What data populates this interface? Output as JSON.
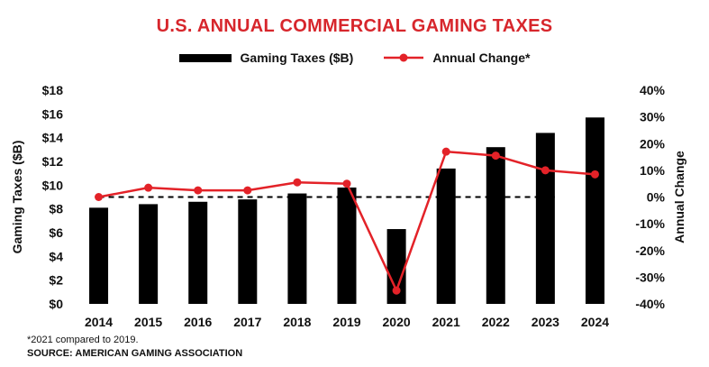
{
  "colors": {
    "accent": "#d7262c",
    "bar": "#000000",
    "line": "#e32228"
  },
  "chart_data": {
    "type": "bar+line",
    "title": "U.S. ANNUAL COMMERCIAL GAMING TAXES",
    "categories": [
      "2014",
      "2015",
      "2016",
      "2017",
      "2018",
      "2019",
      "2020",
      "2021",
      "2022",
      "2023",
      "2024"
    ],
    "series": [
      {
        "name": "Gaming Taxes ($B)",
        "type": "bar",
        "axis": "left",
        "values": [
          8.1,
          8.4,
          8.6,
          8.8,
          9.3,
          9.8,
          6.3,
          11.4,
          13.2,
          14.4,
          15.7
        ]
      },
      {
        "name": "Annual Change*",
        "type": "line",
        "axis": "right",
        "values": [
          0,
          3.5,
          2.5,
          2.5,
          5.5,
          5,
          -35,
          17,
          15.5,
          10,
          8.5
        ]
      }
    ],
    "ylabel": "Gaming Taxes ($B)",
    "y2label": "Annual Change",
    "ylim": [
      0,
      18
    ],
    "y2lim": [
      -40,
      40
    ],
    "yticks": [
      "$0",
      "$2",
      "$4",
      "$6",
      "$8",
      "$10",
      "$12",
      "$14",
      "$16",
      "$18"
    ],
    "y2ticks": [
      "-40%",
      "-30%",
      "-20%",
      "-10%",
      "0%",
      "10%",
      "20%",
      "30%",
      "40%"
    ],
    "reference_line": {
      "axis": "right",
      "value": 0,
      "style": "dashed"
    },
    "grid": false,
    "legend_position": "top-center"
  },
  "footnote": "*2021 compared to 2019.",
  "source": "SOURCE: AMERICAN GAMING ASSOCIATION"
}
